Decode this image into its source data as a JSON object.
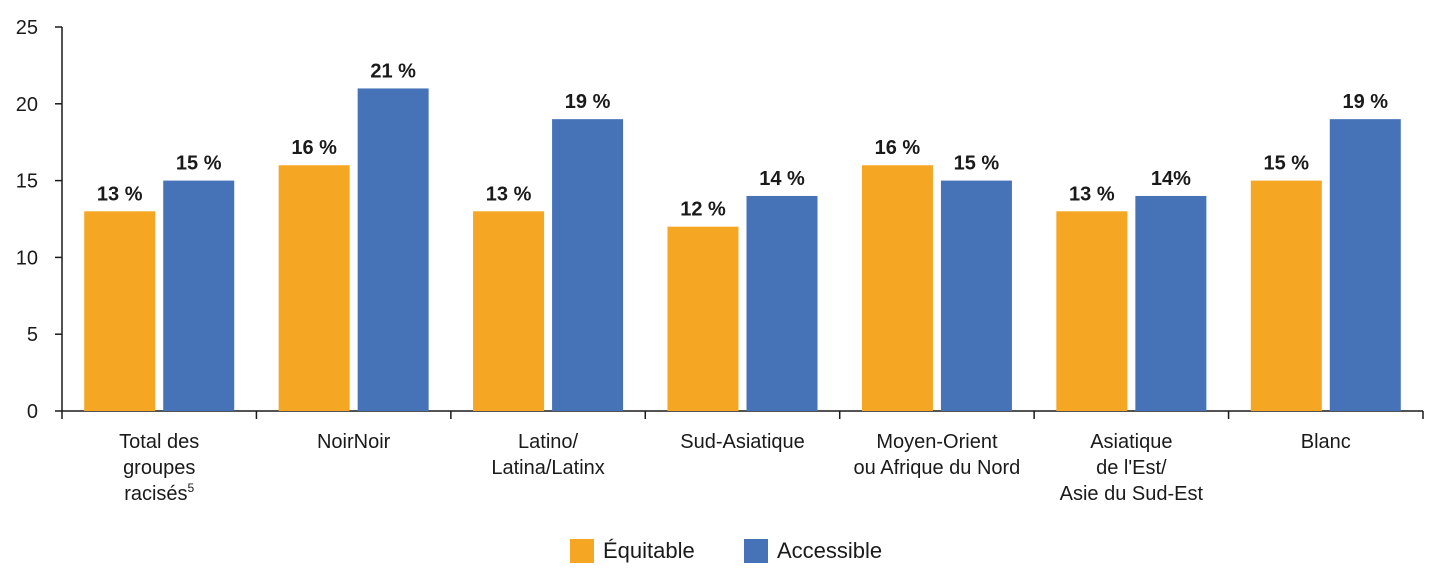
{
  "chart_data": {
    "type": "bar",
    "title": "",
    "xlabel": "",
    "ylabel": "",
    "ylim": [
      0,
      25
    ],
    "yticks": [
      0,
      5,
      10,
      15,
      20,
      25
    ],
    "grid": false,
    "legend_position": "bottom-center",
    "categories": [
      {
        "lines": [
          "Total des",
          "groupes",
          "racisés"
        ],
        "superscript": "5"
      },
      {
        "lines": [
          "NoirNoir"
        ],
        "superscript": ""
      },
      {
        "lines": [
          "Latino/",
          "Latina/Latinx"
        ],
        "superscript": ""
      },
      {
        "lines": [
          "Sud-Asiatique"
        ],
        "superscript": ""
      },
      {
        "lines": [
          "Moyen-Orient",
          "ou Afrique du Nord"
        ],
        "superscript": ""
      },
      {
        "lines": [
          "Asiatique",
          "de l'Est/",
          "Asie du Sud-Est"
        ],
        "superscript": ""
      },
      {
        "lines": [
          "Blanc"
        ],
        "superscript": ""
      }
    ],
    "series": [
      {
        "name": "Équitable",
        "color": "#F5A623",
        "values": [
          13,
          16,
          13,
          12,
          16,
          13,
          15
        ],
        "labels": [
          "13 %",
          "16 %",
          "13 %",
          "12 %",
          "16 %",
          "13 %",
          "15 %"
        ]
      },
      {
        "name": "Accessible",
        "color": "#4672B8",
        "values": [
          15,
          21,
          19,
          14,
          15,
          14,
          19
        ],
        "labels": [
          "15 %",
          "21 %",
          "19 %",
          "14 %",
          "15 %",
          "14%",
          "19 %"
        ]
      }
    ]
  }
}
